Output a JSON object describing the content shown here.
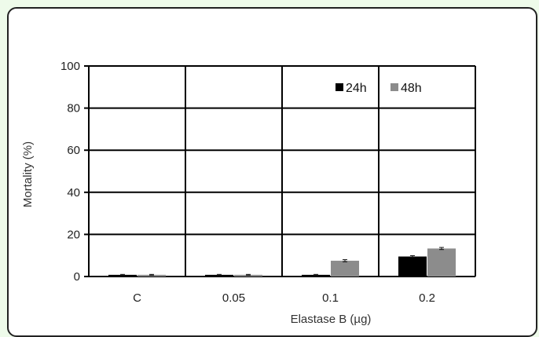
{
  "chart_data": {
    "type": "bar",
    "title": "",
    "xlabel": "Elastase B (µg)",
    "ylabel": "Mortality (%)",
    "categories": [
      "C",
      "0.05",
      "0.1",
      "0.2"
    ],
    "ylim": [
      0,
      100
    ],
    "yticks": [
      0,
      20,
      40,
      60,
      80,
      100
    ],
    "grid": true,
    "legend_position": "top-right",
    "series": [
      {
        "name": "24h",
        "color": "#000000",
        "values": [
          0.8,
          0.8,
          0.8,
          9.5
        ],
        "errors": [
          0.2,
          0.2,
          0.2,
          0.4
        ]
      },
      {
        "name": "48h",
        "color": "#8c8c8c",
        "values": [
          0.8,
          0.8,
          7.5,
          13.3
        ],
        "errors": [
          0.2,
          0.2,
          0.5,
          0.5
        ]
      }
    ]
  }
}
